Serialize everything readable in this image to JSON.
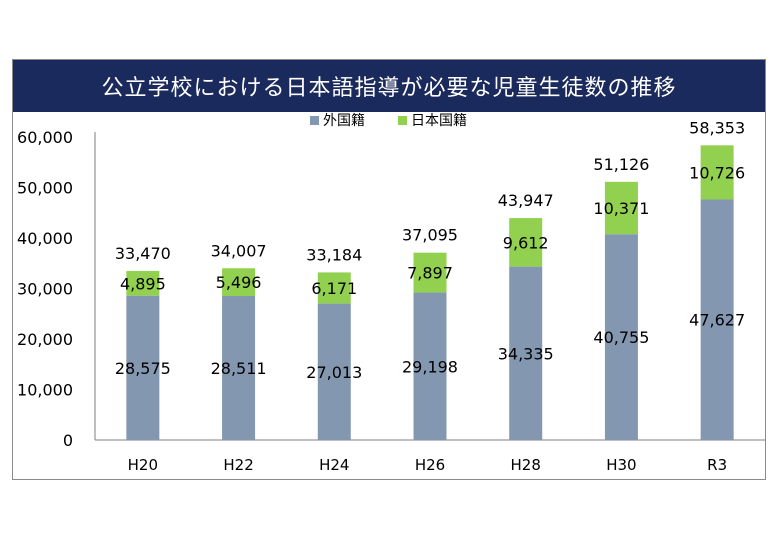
{
  "chart_data": {
    "type": "bar",
    "stacked": true,
    "title": "公立学校における日本語指導が必要な児童生徒数の推移",
    "categories": [
      "H20",
      "H22",
      "H24",
      "H26",
      "H28",
      "H30",
      "R3"
    ],
    "series": [
      {
        "name": "外国籍",
        "values": [
          28575,
          28511,
          27013,
          29198,
          34335,
          40755,
          47627
        ],
        "color": "#8497b0"
      },
      {
        "name": "日本国籍",
        "values": [
          4895,
          5496,
          6171,
          7897,
          9612,
          10371,
          10726
        ],
        "color": "#92d050"
      }
    ],
    "totals": [
      33470,
      34007,
      33184,
      37095,
      43947,
      51126,
      58353
    ],
    "ylim": [
      0,
      60000
    ],
    "yticks": [
      0,
      10000,
      20000,
      30000,
      40000,
      50000,
      60000
    ],
    "ytick_labels": [
      "0",
      "10,000",
      "20,000",
      "30,000",
      "40,000",
      "50,000",
      "60,000"
    ],
    "legend_position": "top-center",
    "grid": false
  }
}
